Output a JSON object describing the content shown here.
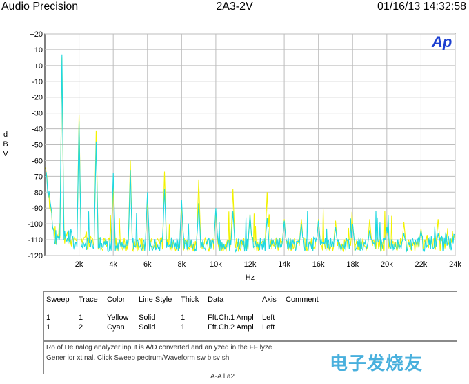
{
  "header": {
    "left": "Audio Precision",
    "center": "2A3-2V",
    "right": "01/16/13 14:32:58"
  },
  "logo_text": "Ap",
  "chart_data": {
    "type": "line",
    "title": "2A3-2V",
    "xlabel": "Hz",
    "ylabel": "d B V",
    "xlim": [
      0,
      24000
    ],
    "ylim": [
      -120,
      20
    ],
    "x_ticks": [
      2000,
      4000,
      6000,
      8000,
      10000,
      12000,
      14000,
      16000,
      18000,
      20000,
      22000,
      24000
    ],
    "x_tick_labels": [
      "2k",
      "4k",
      "6k",
      "8k",
      "10k",
      "12k",
      "14k",
      "16k",
      "18k",
      "20k",
      "22k",
      "24k"
    ],
    "y_ticks": [
      20,
      10,
      0,
      -10,
      -20,
      -30,
      -40,
      -50,
      -60,
      -70,
      -80,
      -90,
      -100,
      -110,
      -120
    ],
    "y_tick_labels": [
      "+20",
      "+10",
      "+0",
      "-10",
      "-20",
      "-30",
      "-40",
      "-50",
      "-60",
      "-70",
      "-80",
      "-90",
      "-100",
      "-110",
      "-120"
    ],
    "grid": true,
    "fundamental_hz": 1000,
    "noise_floor_dbv": -113,
    "series": [
      {
        "name": "Fft.Ch.1 Ampl",
        "color": "#f2f200",
        "harmonics": [
          {
            "x": 1000,
            "y": 5
          },
          {
            "x": 2000,
            "y": -31
          },
          {
            "x": 3000,
            "y": -41
          },
          {
            "x": 4000,
            "y": -77
          },
          {
            "x": 5000,
            "y": -60
          },
          {
            "x": 6000,
            "y": -84
          },
          {
            "x": 7000,
            "y": -67
          },
          {
            "x": 8000,
            "y": -88
          },
          {
            "x": 9000,
            "y": -72
          },
          {
            "x": 10000,
            "y": -92
          },
          {
            "x": 11000,
            "y": -78
          },
          {
            "x": 12000,
            "y": -94
          },
          {
            "x": 13000,
            "y": -80
          },
          {
            "x": 14000,
            "y": -97
          },
          {
            "x": 15000,
            "y": -97
          },
          {
            "x": 16000,
            "y": -97
          },
          {
            "x": 17000,
            "y": -98
          },
          {
            "x": 18000,
            "y": -100
          },
          {
            "x": 19000,
            "y": -97
          },
          {
            "x": 20000,
            "y": -102
          },
          {
            "x": 21000,
            "y": -99
          },
          {
            "x": 22000,
            "y": -103
          },
          {
            "x": 23000,
            "y": -97
          },
          {
            "x": 24000,
            "y": -105
          }
        ]
      },
      {
        "name": "Fft.Ch.2 Ampl",
        "color": "#1ed8e0",
        "harmonics": [
          {
            "x": 1000,
            "y": 7
          },
          {
            "x": 2000,
            "y": -35
          },
          {
            "x": 3000,
            "y": -48
          },
          {
            "x": 4000,
            "y": -68
          },
          {
            "x": 5000,
            "y": -66
          },
          {
            "x": 6000,
            "y": -80
          },
          {
            "x": 7000,
            "y": -78
          },
          {
            "x": 8000,
            "y": -85
          },
          {
            "x": 9000,
            "y": -87
          },
          {
            "x": 10000,
            "y": -90
          },
          {
            "x": 11000,
            "y": -92
          },
          {
            "x": 12000,
            "y": -94
          },
          {
            "x": 13000,
            "y": -96
          },
          {
            "x": 14000,
            "y": -98
          },
          {
            "x": 15000,
            "y": -100
          },
          {
            "x": 16000,
            "y": -98
          },
          {
            "x": 17000,
            "y": -102
          },
          {
            "x": 18000,
            "y": -100
          },
          {
            "x": 19000,
            "y": -104
          },
          {
            "x": 20000,
            "y": -102
          },
          {
            "x": 21000,
            "y": -106
          },
          {
            "x": 22000,
            "y": -104
          },
          {
            "x": 23000,
            "y": -106
          },
          {
            "x": 24000,
            "y": -106
          }
        ]
      }
    ]
  },
  "legend": {
    "headers": [
      "Sweep",
      "Trace",
      "Color",
      "Line Style",
      "Thick",
      "Data",
      "Axis",
      "Comment"
    ],
    "rows": [
      [
        "1",
        "1",
        "Yellow",
        "Solid",
        "1",
        "Fft.Ch.1 Ampl",
        "Left",
        ""
      ],
      [
        "1",
        "2",
        "Cyan",
        "Solid",
        "1",
        "Fft.Ch.2 Ampl",
        "Left",
        ""
      ]
    ]
  },
  "info": {
    "line1": "Ro    of De    nalog analyzer input is A/D converted and an    yzed in    the FF    lyze",
    "line2": "Gener    ior xt    nal. Click Sweep    pectrum/Waveform    sw    b    sv    sh",
    "footer": "A-A    l.a2",
    "watermark": "电子发烧友"
  }
}
